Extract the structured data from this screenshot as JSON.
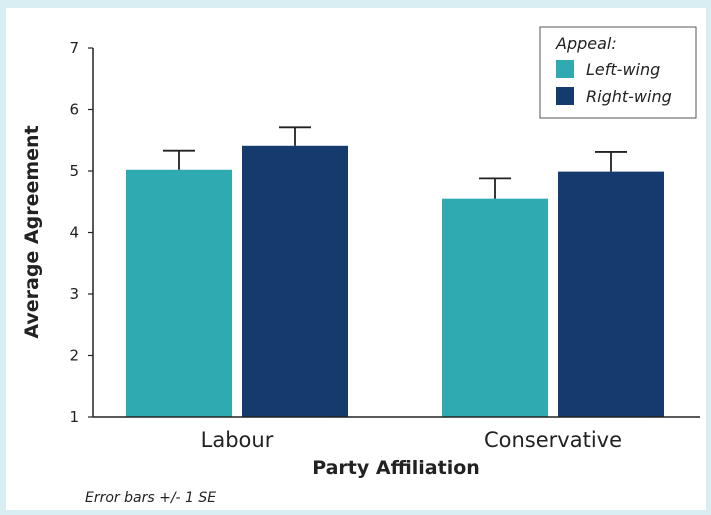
{
  "chart_data": {
    "type": "bar",
    "title": "",
    "xlabel": "Party Affiliation",
    "ylabel": "Average Agreement",
    "categories": [
      "Labour",
      "Conservative"
    ],
    "ylim": [
      1,
      7
    ],
    "yticks": [
      "1",
      "2",
      "3",
      "4",
      "5",
      "6",
      "7"
    ],
    "legend_title": "Appeal:",
    "legend_position": "top-right",
    "series": [
      {
        "name": "Left-wing",
        "color": "#2eaab0",
        "values": [
          5.02,
          4.55
        ],
        "errors": [
          0.31,
          0.33
        ]
      },
      {
        "name": "Right-wing",
        "color": "#143a6e",
        "values": [
          5.41,
          4.99
        ],
        "errors": [
          0.3,
          0.32
        ]
      }
    ],
    "error_note": "Error bars +/- 1 SE",
    "grid": false
  }
}
